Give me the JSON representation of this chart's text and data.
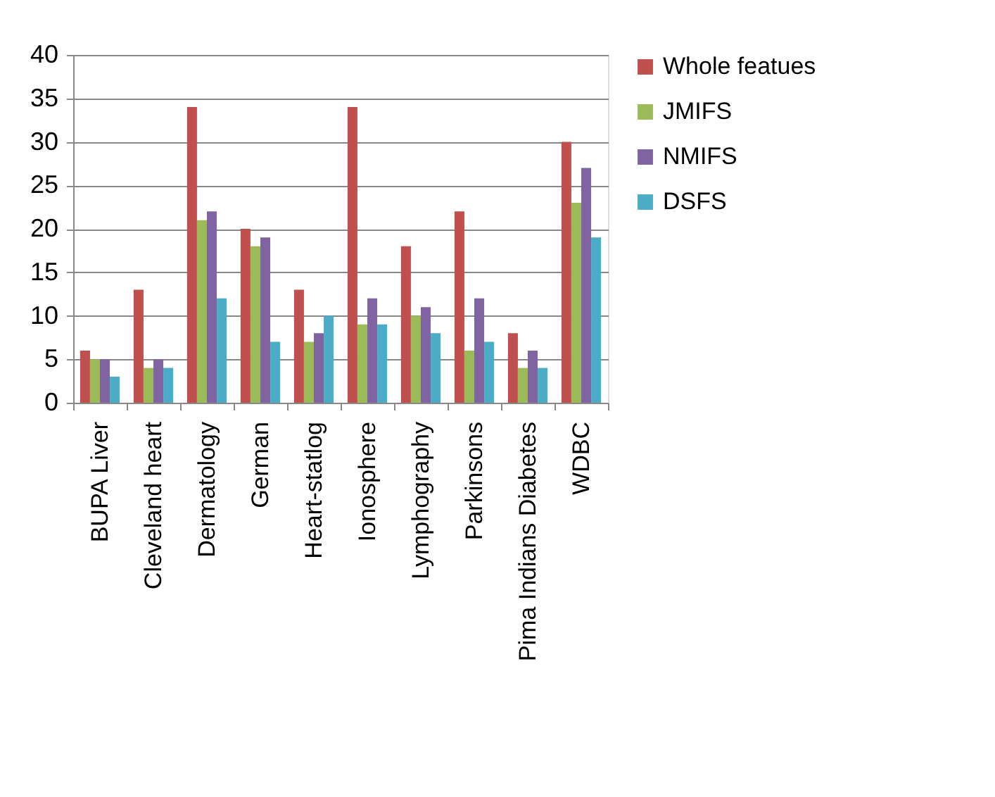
{
  "chart_data": {
    "type": "bar",
    "categories": [
      "BUPA Liver",
      "Cleveland heart",
      "Dermatology",
      "German",
      "Heart-statlog",
      "Ionosphere",
      "Lymphography",
      "Parkinsons",
      "Pima Indians Diabetes",
      "WDBC"
    ],
    "series": [
      {
        "name": "Whole featues",
        "color": "#c0504d",
        "values": [
          6,
          13,
          34,
          20,
          13,
          34,
          18,
          22,
          8,
          30
        ]
      },
      {
        "name": "JMIFS",
        "color": "#9bbb59",
        "values": [
          5,
          4,
          21,
          18,
          7,
          9,
          10,
          6,
          4,
          23
        ]
      },
      {
        "name": "NMIFS",
        "color": "#8064a2",
        "values": [
          5,
          5,
          22,
          19,
          8,
          12,
          11,
          12,
          6,
          27
        ]
      },
      {
        "name": "DSFS",
        "color": "#4bacc6",
        "values": [
          3,
          4,
          12,
          7,
          10,
          9,
          8,
          7,
          4,
          19
        ]
      }
    ],
    "ylim": [
      0,
      40
    ],
    "yticks": [
      0,
      5,
      10,
      15,
      20,
      25,
      30,
      35,
      40
    ],
    "grid": "y",
    "legend": "right"
  }
}
